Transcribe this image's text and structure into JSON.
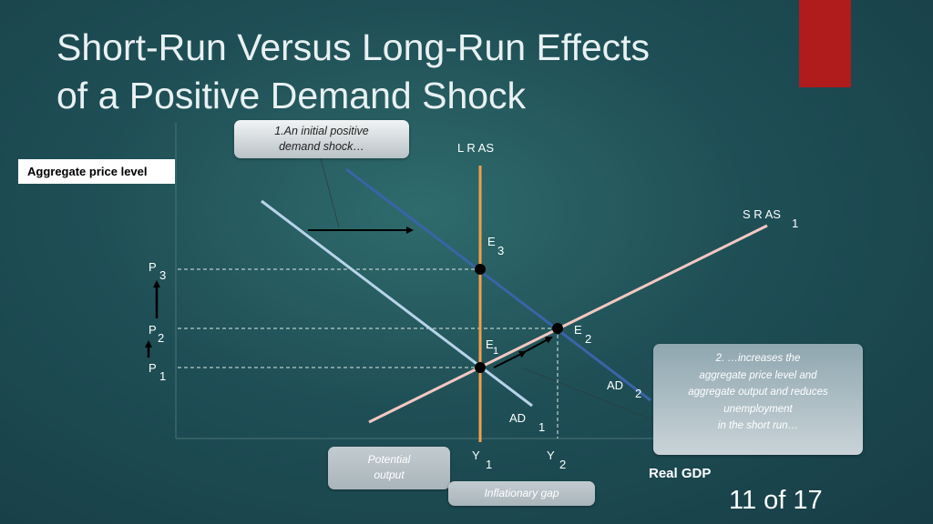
{
  "slide": {
    "title_line1": "Short-Run Versus Long-Run Effects",
    "title_line2": "of a Positive Demand Shock",
    "slide_number": "11 of 17",
    "accent_color": "#b01c1c"
  },
  "axes": {
    "y_label": "Aggregate price level",
    "x_label": "Real GDP"
  },
  "callouts": {
    "shock_line1": "1.An initial  positive",
    "shock_line2": "demand shock…",
    "increase_line1": "2. …increases the",
    "increase_line2": "aggregate price level and",
    "increase_line3": "aggregate output and reduces",
    "increase_line4": "unemployment",
    "increase_line5": "in the short run…",
    "potential_line1": "Potential",
    "potential_line2": "output",
    "gap": "Inflationary gap"
  },
  "curves": {
    "lras": "L R AS",
    "sras": "S R AS",
    "sras_sub": "1",
    "ad1": "AD",
    "ad1_sub": "1",
    "ad2": "AD",
    "ad2_sub": "2",
    "colors": {
      "lras": "#f0a04b",
      "sras": "#f4c8c2",
      "ad1": "#b8d3ea",
      "ad2": "#3a64a8"
    }
  },
  "levels": {
    "p3": "P",
    "p3_sub": "3",
    "p2": "P",
    "p2_sub": "2",
    "p1": "P",
    "p1_sub": "1",
    "y1": "Y",
    "y1_sub": "1",
    "y2": "Y",
    "y2_sub": "2"
  },
  "equilibria": {
    "e1": "E",
    "e1_sub": "1",
    "e2": "E",
    "e2_sub": "2",
    "e3": "E",
    "e3_sub": "3"
  }
}
